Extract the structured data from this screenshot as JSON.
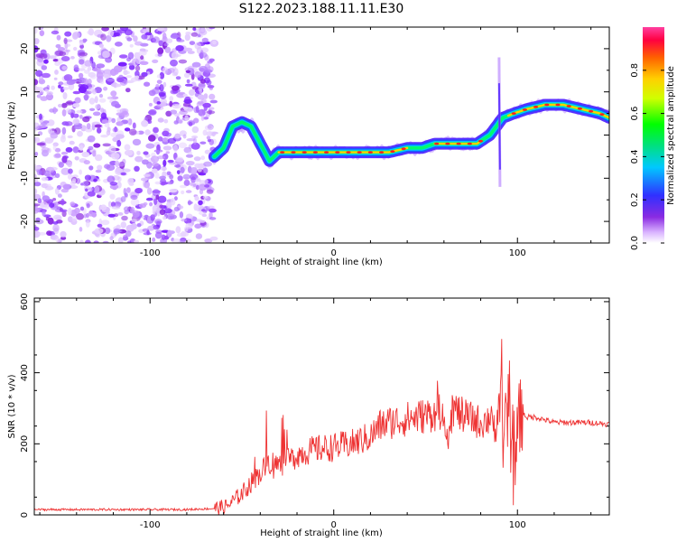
{
  "title": "S122.2023.188.11.11.E30",
  "chart_data": [
    {
      "type": "heatmap",
      "xlabel": "Height of straight line (km)",
      "ylabel": "Frequency (Hz)",
      "xlim": [
        -163,
        150
      ],
      "ylim": [
        -25,
        25
      ],
      "xticks": [
        -100,
        0,
        100
      ],
      "yticks": [
        -20,
        -10,
        0,
        10,
        20
      ],
      "colorbar": {
        "label": "Normalized spectral amplitude",
        "range": [
          0,
          1
        ],
        "ticks": [
          "0.0",
          "0.2",
          "0.4",
          "0.6",
          "0.8"
        ]
      },
      "ridge": {
        "x": [
          -65,
          -60,
          -55,
          -50,
          -45,
          -40,
          -35,
          -30,
          -20,
          -10,
          0,
          10,
          20,
          30,
          40,
          48,
          55,
          62,
          70,
          78,
          85,
          92,
          98,
          105,
          115,
          125,
          135,
          145,
          150
        ],
        "y": [
          -5,
          -3,
          2,
          3,
          2,
          -2,
          -6,
          -4,
          -4,
          -4,
          -4,
          -4,
          -4,
          -4,
          -3,
          -3,
          -2,
          -2,
          -2,
          -2,
          0,
          4,
          5,
          6,
          7,
          7,
          6,
          5,
          4
        ]
      },
      "noise_region_x": [
        -163,
        -65
      ]
    },
    {
      "type": "line",
      "xlabel": "Height of straight line (km)",
      "ylabel": "SNR (10 * v/v)",
      "xlim": [
        -163,
        150
      ],
      "ylim": [
        0,
        610
      ],
      "xticks": [
        -100,
        0,
        100
      ],
      "yticks": [
        0,
        200,
        400,
        600
      ],
      "color": "#ee3333",
      "series": [
        {
          "x": [
            -163,
            -120,
            -80,
            -65,
            -58,
            -50,
            -45,
            -38,
            -35,
            -30,
            -25,
            -20,
            -10,
            0,
            10,
            20,
            25,
            30,
            40,
            50,
            60,
            62,
            65,
            70,
            75,
            80,
            85,
            88,
            90,
            92,
            95,
            98,
            100,
            102,
            105,
            110,
            120,
            130,
            140,
            150
          ],
          "y": [
            15,
            15,
            15,
            18,
            25,
            60,
            90,
            130,
            150,
            140,
            150,
            170,
            185,
            190,
            200,
            220,
            250,
            260,
            270,
            280,
            290,
            220,
            300,
            280,
            270,
            260,
            270,
            240,
            330,
            200,
            290,
            120,
            240,
            290,
            275,
            275,
            260,
            260,
            260,
            255
          ]
        }
      ]
    }
  ]
}
